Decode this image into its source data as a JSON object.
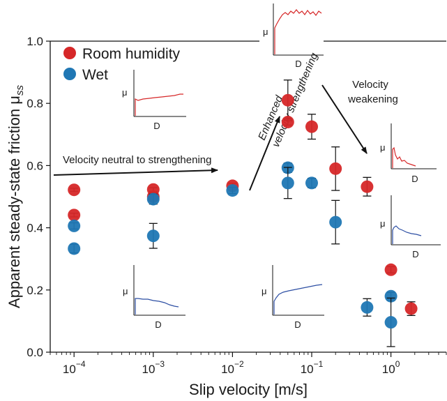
{
  "chart_data": {
    "type": "scatter",
    "xscale": "log",
    "xlim": [
      5e-05,
      5
    ],
    "ylim": [
      0.0,
      1.0
    ],
    "xlabel": "Slip velocity [m/s]",
    "ylabel": "Apparent steady-state friction μ",
    "ylabel_sub": "ss",
    "xticks": [
      {
        "value": 0.0001,
        "base": "10",
        "exp": "−4"
      },
      {
        "value": 0.001,
        "base": "10",
        "exp": "−3"
      },
      {
        "value": 0.01,
        "base": "10",
        "exp": "−2"
      },
      {
        "value": 0.1,
        "base": "10",
        "exp": "−1"
      },
      {
        "value": 1,
        "base": "10",
        "exp": "0"
      }
    ],
    "yticks": [
      "0.0",
      "0.2",
      "0.4",
      "0.6",
      "0.8",
      "1.0"
    ],
    "ytick_values": [
      0.0,
      0.2,
      0.4,
      0.6,
      0.8,
      1.0
    ],
    "legend_position": "top-left",
    "series": [
      {
        "name": "Room humidity",
        "color": "#d62728",
        "points": [
          {
            "x": 0.0001,
            "y": 0.522,
            "err": 0.005
          },
          {
            "x": 0.0001,
            "y": 0.441,
            "err": 0.006
          },
          {
            "x": 0.001,
            "y": 0.523,
            "err": 0.006
          },
          {
            "x": 0.001,
            "y": 0.5,
            "err": 0.012
          },
          {
            "x": 0.01,
            "y": 0.535,
            "err": 0.008
          },
          {
            "x": 0.05,
            "y": 0.81,
            "err": 0.065
          },
          {
            "x": 0.05,
            "y": 0.74,
            "err": 0.01
          },
          {
            "x": 0.1,
            "y": 0.725,
            "err": 0.04
          },
          {
            "x": 0.2,
            "y": 0.59,
            "err": 0.07
          },
          {
            "x": 0.5,
            "y": 0.532,
            "err": 0.03
          },
          {
            "x": 1.0,
            "y": 0.265,
            "err": 0.01
          },
          {
            "x": 1.8,
            "y": 0.14,
            "err": 0.022
          }
        ]
      },
      {
        "name": "Wet",
        "color": "#1f77b4",
        "points": [
          {
            "x": 0.0001,
            "y": 0.406,
            "err": 0.01
          },
          {
            "x": 0.0001,
            "y": 0.333,
            "err": 0.014
          },
          {
            "x": 0.001,
            "y": 0.492,
            "err": 0.016
          },
          {
            "x": 0.001,
            "y": 0.374,
            "err": 0.04
          },
          {
            "x": 0.01,
            "y": 0.52,
            "err": 0.01
          },
          {
            "x": 0.05,
            "y": 0.593,
            "err": 0.015
          },
          {
            "x": 0.05,
            "y": 0.544,
            "err": 0.05
          },
          {
            "x": 0.1,
            "y": 0.544,
            "err": 0.015
          },
          {
            "x": 0.2,
            "y": 0.418,
            "err": 0.07
          },
          {
            "x": 0.5,
            "y": 0.144,
            "err": 0.028
          },
          {
            "x": 1.0,
            "y": 0.18,
            "err": 0.012
          },
          {
            "x": 1.0,
            "y": 0.096,
            "err": 0.078
          }
        ]
      }
    ],
    "annotations": [
      "Velocity neutral to strengthening",
      "Enhanced",
      "velocity strengthening",
      "Velocity",
      "weakening"
    ],
    "inset_axis_labels": {
      "y": "μ",
      "x": "D"
    }
  }
}
